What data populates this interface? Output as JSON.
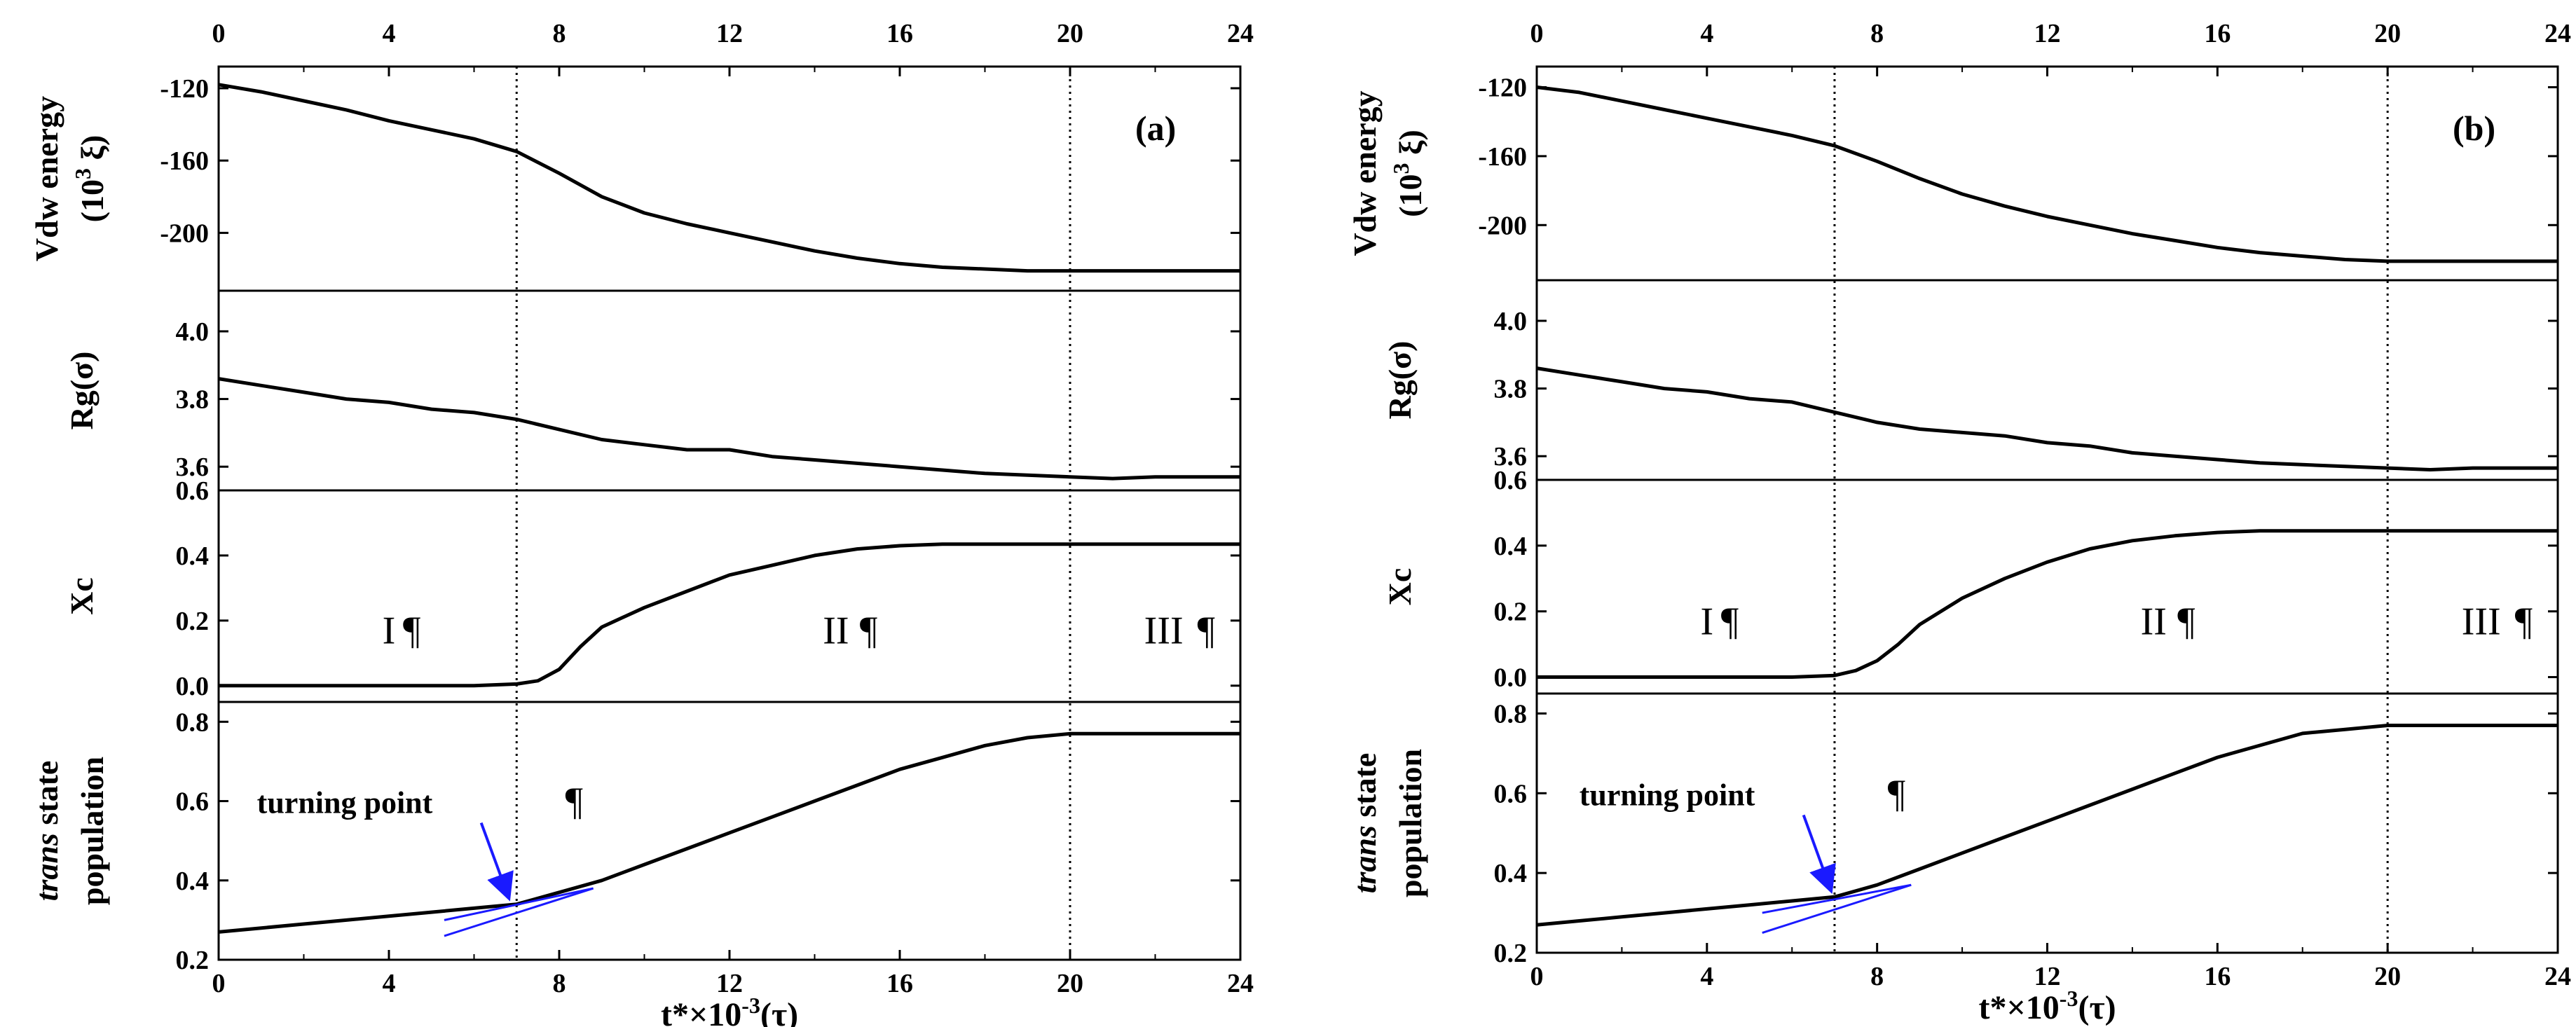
{
  "figure": {
    "colors": {
      "axis": "#000000",
      "curve": "#000000",
      "guide": "#000000",
      "tangent": "#1a1aff",
      "background": "#ffffff"
    },
    "paragraph_mark": "¶"
  },
  "chart_data": [
    {
      "type": "line",
      "panel_label": "(a)",
      "x": {
        "label_prefix": "t*×10",
        "label_exp": "-3",
        "label_suffix": "(τ)",
        "range": [
          0,
          24
        ],
        "ticks": [
          "0",
          "4",
          "8",
          "12",
          "16",
          "20",
          "24"
        ]
      },
      "vlines": [
        7,
        20
      ],
      "phase_labels": [
        {
          "text": "I",
          "x": 4,
          "y": 0.13
        },
        {
          "text": "II",
          "x": 14.5,
          "y": 0.13
        },
        {
          "text": "III",
          "x": 22.2,
          "y": 0.13
        }
      ],
      "subplots": [
        {
          "key": "vdw",
          "ylabel_line1": "Vdw energy",
          "ylabel_line2_prefix": "(10",
          "ylabel_line2_exp": "3",
          "ylabel_line2_suffix": " ξ)",
          "ylim": [
            -232,
            -108
          ],
          "yticks": [
            -120,
            -160,
            -200
          ],
          "ytick_labels": [
            "-120",
            "-160",
            "-200"
          ],
          "series": {
            "x": [
              0,
              1,
              2,
              3,
              4,
              5,
              6,
              7,
              8,
              9,
              10,
              11,
              12,
              13,
              14,
              15,
              16,
              17,
              18,
              19,
              20,
              21,
              22,
              23,
              24
            ],
            "y": [
              -118,
              -122,
              -127,
              -132,
              -138,
              -143,
              -148,
              -155,
              -167,
              -180,
              -189,
              -195,
              -200,
              -205,
              -210,
              -214,
              -217,
              -219,
              -220,
              -221,
              -221,
              -221,
              -221,
              -221,
              -221
            ]
          }
        },
        {
          "key": "rg",
          "ylabel": "Rg(σ)",
          "ylim": [
            3.53,
            4.12
          ],
          "yticks": [
            3.6,
            3.8,
            4.0
          ],
          "ytick_labels": [
            "3.6",
            "3.8",
            "4.0"
          ],
          "series": {
            "x": [
              0,
              1,
              2,
              3,
              4,
              5,
              6,
              7,
              8,
              9,
              10,
              11,
              12,
              13,
              14,
              15,
              16,
              17,
              18,
              19,
              20,
              21,
              22,
              23,
              24
            ],
            "y": [
              3.86,
              3.84,
              3.82,
              3.8,
              3.79,
              3.77,
              3.76,
              3.74,
              3.71,
              3.68,
              3.665,
              3.65,
              3.65,
              3.63,
              3.62,
              3.61,
              3.6,
              3.59,
              3.58,
              3.575,
              3.57,
              3.565,
              3.57,
              3.57,
              3.57
            ]
          }
        },
        {
          "key": "xc",
          "ylabel": "Xc",
          "ylim": [
            -0.05,
            0.6
          ],
          "yticks": [
            0.0,
            0.2,
            0.4,
            0.6
          ],
          "ytick_labels": [
            "0.0",
            "0.2",
            "0.4",
            "0.6"
          ],
          "series": {
            "x": [
              0,
              1,
              2,
              3,
              4,
              5,
              6,
              7,
              7.5,
              8,
              8.5,
              9,
              10,
              11,
              12,
              13,
              14,
              15,
              16,
              17,
              18,
              19,
              20,
              21,
              22,
              23,
              24
            ],
            "y": [
              0,
              0,
              0,
              0,
              0,
              0,
              0,
              0.005,
              0.015,
              0.05,
              0.12,
              0.18,
              0.24,
              0.29,
              0.34,
              0.37,
              0.4,
              0.42,
              0.43,
              0.435,
              0.435,
              0.435,
              0.435,
              0.435,
              0.435,
              0.435,
              0.435
            ]
          }
        },
        {
          "key": "trans",
          "ylabel_italic": "trans",
          "ylabel_rest": " state",
          "ylabel_line2": "population",
          "ylim": [
            0.2,
            0.85
          ],
          "yticks": [
            0.2,
            0.4,
            0.6,
            0.8
          ],
          "ytick_labels": [
            "0.2",
            "0.4",
            "0.6",
            "0.8"
          ],
          "series": {
            "x": [
              0,
              1,
              2,
              3,
              4,
              5,
              6,
              7,
              8,
              9,
              10,
              11,
              12,
              13,
              14,
              15,
              16,
              17,
              18,
              19,
              20,
              21,
              22,
              23,
              24
            ],
            "y": [
              0.27,
              0.28,
              0.29,
              0.3,
              0.31,
              0.32,
              0.33,
              0.34,
              0.37,
              0.4,
              0.44,
              0.48,
              0.52,
              0.56,
              0.6,
              0.64,
              0.68,
              0.71,
              0.74,
              0.76,
              0.77,
              0.77,
              0.77,
              0.77,
              0.77
            ]
          },
          "annotation": {
            "text": "turning point",
            "text_x": 0.9,
            "text_y": 0.57,
            "arrow_to": [
              6.8,
              0.35
            ],
            "tangents": [
              [
                [
                  5.3,
                  0.26
                ],
                [
                  8.8,
                  0.38
                ]
              ],
              [
                [
                  5.3,
                  0.3
                ],
                [
                  8.8,
                  0.38
                ]
              ]
            ]
          }
        }
      ]
    },
    {
      "type": "line",
      "panel_label": "(b)",
      "x": {
        "label_prefix": "t*×10",
        "label_exp": "-3",
        "label_suffix": "(τ)",
        "range": [
          0,
          24
        ],
        "ticks": [
          "0",
          "4",
          "8",
          "12",
          "16",
          "20",
          "24"
        ]
      },
      "vlines": [
        7,
        20
      ],
      "phase_labels": [
        {
          "text": "I",
          "x": 4,
          "y": 0.13
        },
        {
          "text": "II",
          "x": 14.5,
          "y": 0.13
        },
        {
          "text": "III",
          "x": 22.2,
          "y": 0.13
        }
      ],
      "subplots": [
        {
          "key": "vdw",
          "ylabel_line1": "Vdw energy",
          "ylabel_line2_prefix": "(10",
          "ylabel_line2_exp": "3",
          "ylabel_line2_suffix": " ξ)",
          "ylim": [
            -232,
            -108
          ],
          "yticks": [
            -120,
            -160,
            -200
          ],
          "ytick_labels": [
            "-120",
            "-160",
            "-200"
          ],
          "series": {
            "x": [
              0,
              1,
              2,
              3,
              4,
              5,
              6,
              7,
              8,
              9,
              10,
              11,
              12,
              13,
              14,
              15,
              16,
              17,
              18,
              19,
              20,
              21,
              22,
              23,
              24
            ],
            "y": [
              -120,
              -123,
              -128,
              -133,
              -138,
              -143,
              -148,
              -154,
              -163,
              -173,
              -182,
              -189,
              -195,
              -200,
              -205,
              -209,
              -213,
              -216,
              -218,
              -220,
              -221,
              -221,
              -221,
              -221,
              -221
            ]
          }
        },
        {
          "key": "rg",
          "ylabel": "Rg(σ)",
          "ylim": [
            3.53,
            4.12
          ],
          "yticks": [
            3.6,
            3.8,
            4.0
          ],
          "ytick_labels": [
            "3.6",
            "3.8",
            "4.0"
          ],
          "series": {
            "x": [
              0,
              1,
              2,
              3,
              4,
              5,
              6,
              7,
              8,
              9,
              10,
              11,
              12,
              13,
              14,
              15,
              16,
              17,
              18,
              19,
              20,
              21,
              22,
              23,
              24
            ],
            "y": [
              3.86,
              3.84,
              3.82,
              3.8,
              3.79,
              3.77,
              3.76,
              3.73,
              3.7,
              3.68,
              3.67,
              3.66,
              3.64,
              3.63,
              3.61,
              3.6,
              3.59,
              3.58,
              3.575,
              3.57,
              3.565,
              3.56,
              3.565,
              3.565,
              3.565
            ]
          }
        },
        {
          "key": "xc",
          "ylabel": "Xc",
          "ylim": [
            -0.05,
            0.6
          ],
          "yticks": [
            0.0,
            0.2,
            0.4,
            0.6
          ],
          "ytick_labels": [
            "0.0",
            "0.2",
            "0.4",
            "0.6"
          ],
          "series": {
            "x": [
              0,
              1,
              2,
              3,
              4,
              5,
              6,
              7,
              7.5,
              8,
              8.5,
              9,
              10,
              11,
              12,
              13,
              14,
              15,
              16,
              17,
              18,
              19,
              20,
              21,
              22,
              23,
              24
            ],
            "y": [
              0,
              0,
              0,
              0,
              0,
              0,
              0,
              0.005,
              0.02,
              0.05,
              0.1,
              0.16,
              0.24,
              0.3,
              0.35,
              0.39,
              0.415,
              0.43,
              0.44,
              0.445,
              0.445,
              0.445,
              0.445,
              0.445,
              0.445,
              0.445,
              0.445
            ]
          }
        },
        {
          "key": "trans",
          "ylabel_italic": "trans",
          "ylabel_rest": " state",
          "ylabel_line2": "population",
          "ylim": [
            0.2,
            0.85
          ],
          "yticks": [
            0.2,
            0.4,
            0.6,
            0.8
          ],
          "ytick_labels": [
            "0.2",
            "0.4",
            "0.6",
            "0.8"
          ],
          "series": {
            "x": [
              0,
              1,
              2,
              3,
              4,
              5,
              6,
              7,
              8,
              9,
              10,
              11,
              12,
              13,
              14,
              15,
              16,
              17,
              18,
              19,
              20,
              21,
              22,
              23,
              24
            ],
            "y": [
              0.27,
              0.28,
              0.29,
              0.3,
              0.31,
              0.32,
              0.33,
              0.34,
              0.37,
              0.41,
              0.45,
              0.49,
              0.53,
              0.57,
              0.61,
              0.65,
              0.69,
              0.72,
              0.75,
              0.76,
              0.77,
              0.77,
              0.77,
              0.77,
              0.77
            ]
          },
          "annotation": {
            "text": "turning point",
            "text_x": 1.0,
            "text_y": 0.57,
            "arrow_to": [
              6.9,
              0.35
            ],
            "tangents": [
              [
                [
                  5.3,
                  0.25
                ],
                [
                  8.8,
                  0.37
                ]
              ],
              [
                [
                  5.3,
                  0.3
                ],
                [
                  8.8,
                  0.37
                ]
              ]
            ]
          }
        }
      ]
    }
  ]
}
